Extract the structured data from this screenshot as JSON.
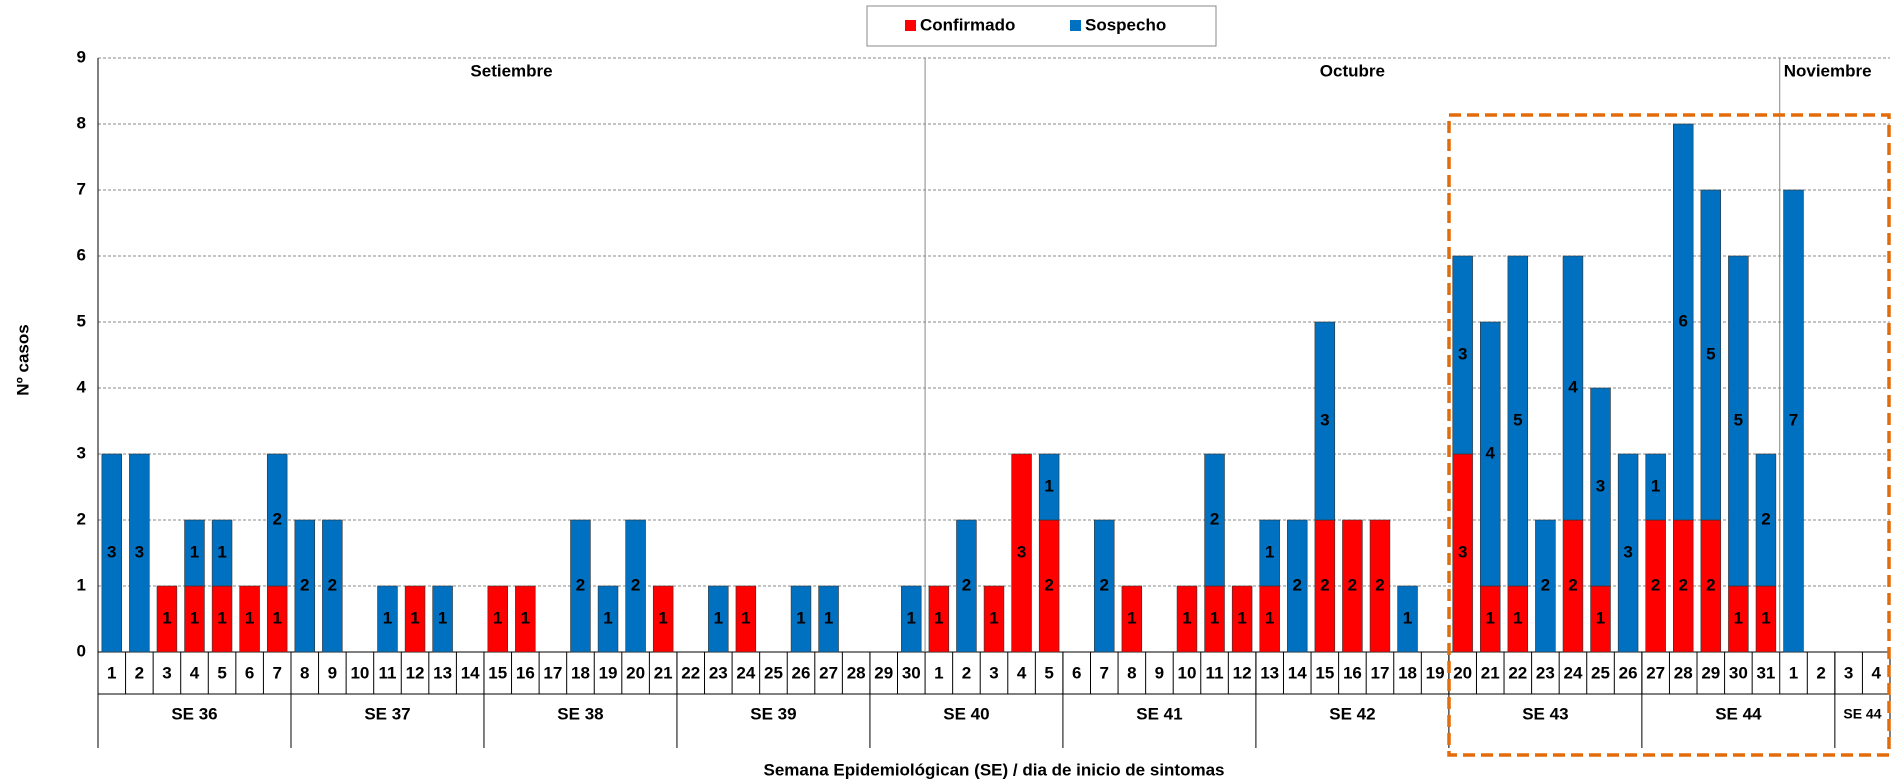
{
  "chart_data": {
    "type": "stacked_bar",
    "y_label": "Nº casos",
    "x_label": "Semana Epidemiológican (SE) / dia de inicio de sintomas",
    "categories": [
      "1",
      "2",
      "3",
      "4",
      "5",
      "6",
      "7",
      "8",
      "9",
      "10",
      "11",
      "12",
      "13",
      "14",
      "15",
      "16",
      "17",
      "18",
      "19",
      "20",
      "21",
      "22",
      "23",
      "24",
      "25",
      "26",
      "27",
      "28",
      "29",
      "30",
      "1",
      "2",
      "3",
      "4",
      "5",
      "6",
      "7",
      "8",
      "9",
      "10",
      "11",
      "12",
      "13",
      "14",
      "15",
      "16",
      "17",
      "18",
      "19",
      "20",
      "21",
      "22",
      "23",
      "24",
      "25",
      "26",
      "27",
      "28",
      "29",
      "30",
      "31",
      "1",
      "2",
      "3",
      "4"
    ],
    "weeks": [
      "SE 36",
      "SE 37",
      "SE 38",
      "SE 39",
      "SE 40",
      "SE 41",
      "SE 42",
      "SE 43",
      "SE 44",
      "SE 44"
    ],
    "months": [
      "Setiembre",
      "Octubre",
      "Noviembre"
    ],
    "series": [
      {
        "name": "Confirmado",
        "color": "#ff0000",
        "values": [
          0,
          0,
          1,
          1,
          1,
          1,
          1,
          0,
          0,
          0,
          0,
          1,
          0,
          0,
          1,
          1,
          0,
          0,
          0,
          0,
          1,
          0,
          0,
          1,
          0,
          0,
          0,
          0,
          0,
          0,
          1,
          0,
          1,
          3,
          2,
          0,
          0,
          1,
          0,
          1,
          1,
          1,
          1,
          0,
          2,
          2,
          2,
          0,
          0,
          3,
          1,
          1,
          0,
          2,
          1,
          0,
          2,
          2,
          2,
          1,
          1,
          0,
          0,
          0,
          0
        ]
      },
      {
        "name": "Sospecho",
        "color": "#0070c0",
        "values": [
          3,
          3,
          0,
          1,
          1,
          0,
          2,
          2,
          2,
          0,
          1,
          0,
          1,
          0,
          0,
          0,
          0,
          2,
          1,
          2,
          0,
          0,
          1,
          0,
          0,
          1,
          1,
          0,
          0,
          1,
          0,
          2,
          0,
          0,
          1,
          0,
          2,
          0,
          0,
          0,
          2,
          0,
          1,
          2,
          3,
          0,
          0,
          1,
          0,
          3,
          4,
          5,
          2,
          4,
          3,
          3,
          1,
          6,
          5,
          5,
          2,
          7,
          0,
          0,
          0
        ]
      }
    ],
    "ylim": [
      0,
      9
    ],
    "yticks": [
      0,
      1,
      2,
      3,
      4,
      5,
      6,
      7,
      8,
      9
    ],
    "grid": true
  }
}
